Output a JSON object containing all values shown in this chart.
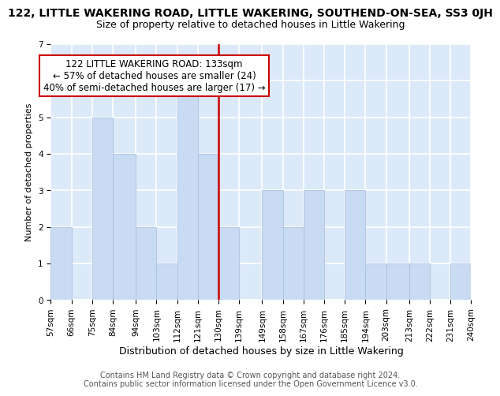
{
  "title": "122, LITTLE WAKERING ROAD, LITTLE WAKERING, SOUTHEND-ON-SEA, SS3 0JH",
  "subtitle": "Size of property relative to detached houses in Little Wakering",
  "xlabel": "Distribution of detached houses by size in Little Wakering",
  "ylabel": "Number of detached properties",
  "bins": [
    57,
    66,
    75,
    84,
    94,
    103,
    112,
    121,
    130,
    139,
    149,
    158,
    167,
    176,
    185,
    194,
    203,
    213,
    222,
    231,
    240
  ],
  "bin_labels": [
    "57sqm",
    "66sqm",
    "75sqm",
    "84sqm",
    "94sqm",
    "103sqm",
    "112sqm",
    "121sqm",
    "130sqm",
    "139sqm",
    "149sqm",
    "158sqm",
    "167sqm",
    "176sqm",
    "185sqm",
    "194sqm",
    "203sqm",
    "213sqm",
    "222sqm",
    "231sqm",
    "240sqm"
  ],
  "counts": [
    2,
    0,
    5,
    4,
    2,
    1,
    6,
    4,
    2,
    0,
    3,
    2,
    3,
    0,
    3,
    1,
    1,
    1,
    0,
    1,
    0
  ],
  "bar_color": "#c9dbf2",
  "bar_edge_color": "#a8c0e0",
  "property_line_x": 130,
  "property_line_color": "#cc0000",
  "annotation_text": "122 LITTLE WAKERING ROAD: 133sqm\n← 57% of detached houses are smaller (24)\n40% of semi-detached houses are larger (17) →",
  "annotation_box_facecolor": "#ffffff",
  "annotation_box_edgecolor": "#cc0000",
  "ylim": [
    0,
    7
  ],
  "yticks": [
    0,
    1,
    2,
    3,
    4,
    5,
    6,
    7
  ],
  "fig_facecolor": "#ffffff",
  "ax_facecolor": "#dce9f8",
  "grid_color": "#ffffff",
  "title_fontsize": 10,
  "subtitle_fontsize": 9,
  "xlabel_fontsize": 9,
  "ylabel_fontsize": 8,
  "tick_fontsize": 7.5,
  "annotation_fontsize": 8.5,
  "footer_fontsize": 7,
  "footer_line1": "Contains HM Land Registry data © Crown copyright and database right 2024.",
  "footer_line2": "Contains public sector information licensed under the Open Government Licence v3.0."
}
